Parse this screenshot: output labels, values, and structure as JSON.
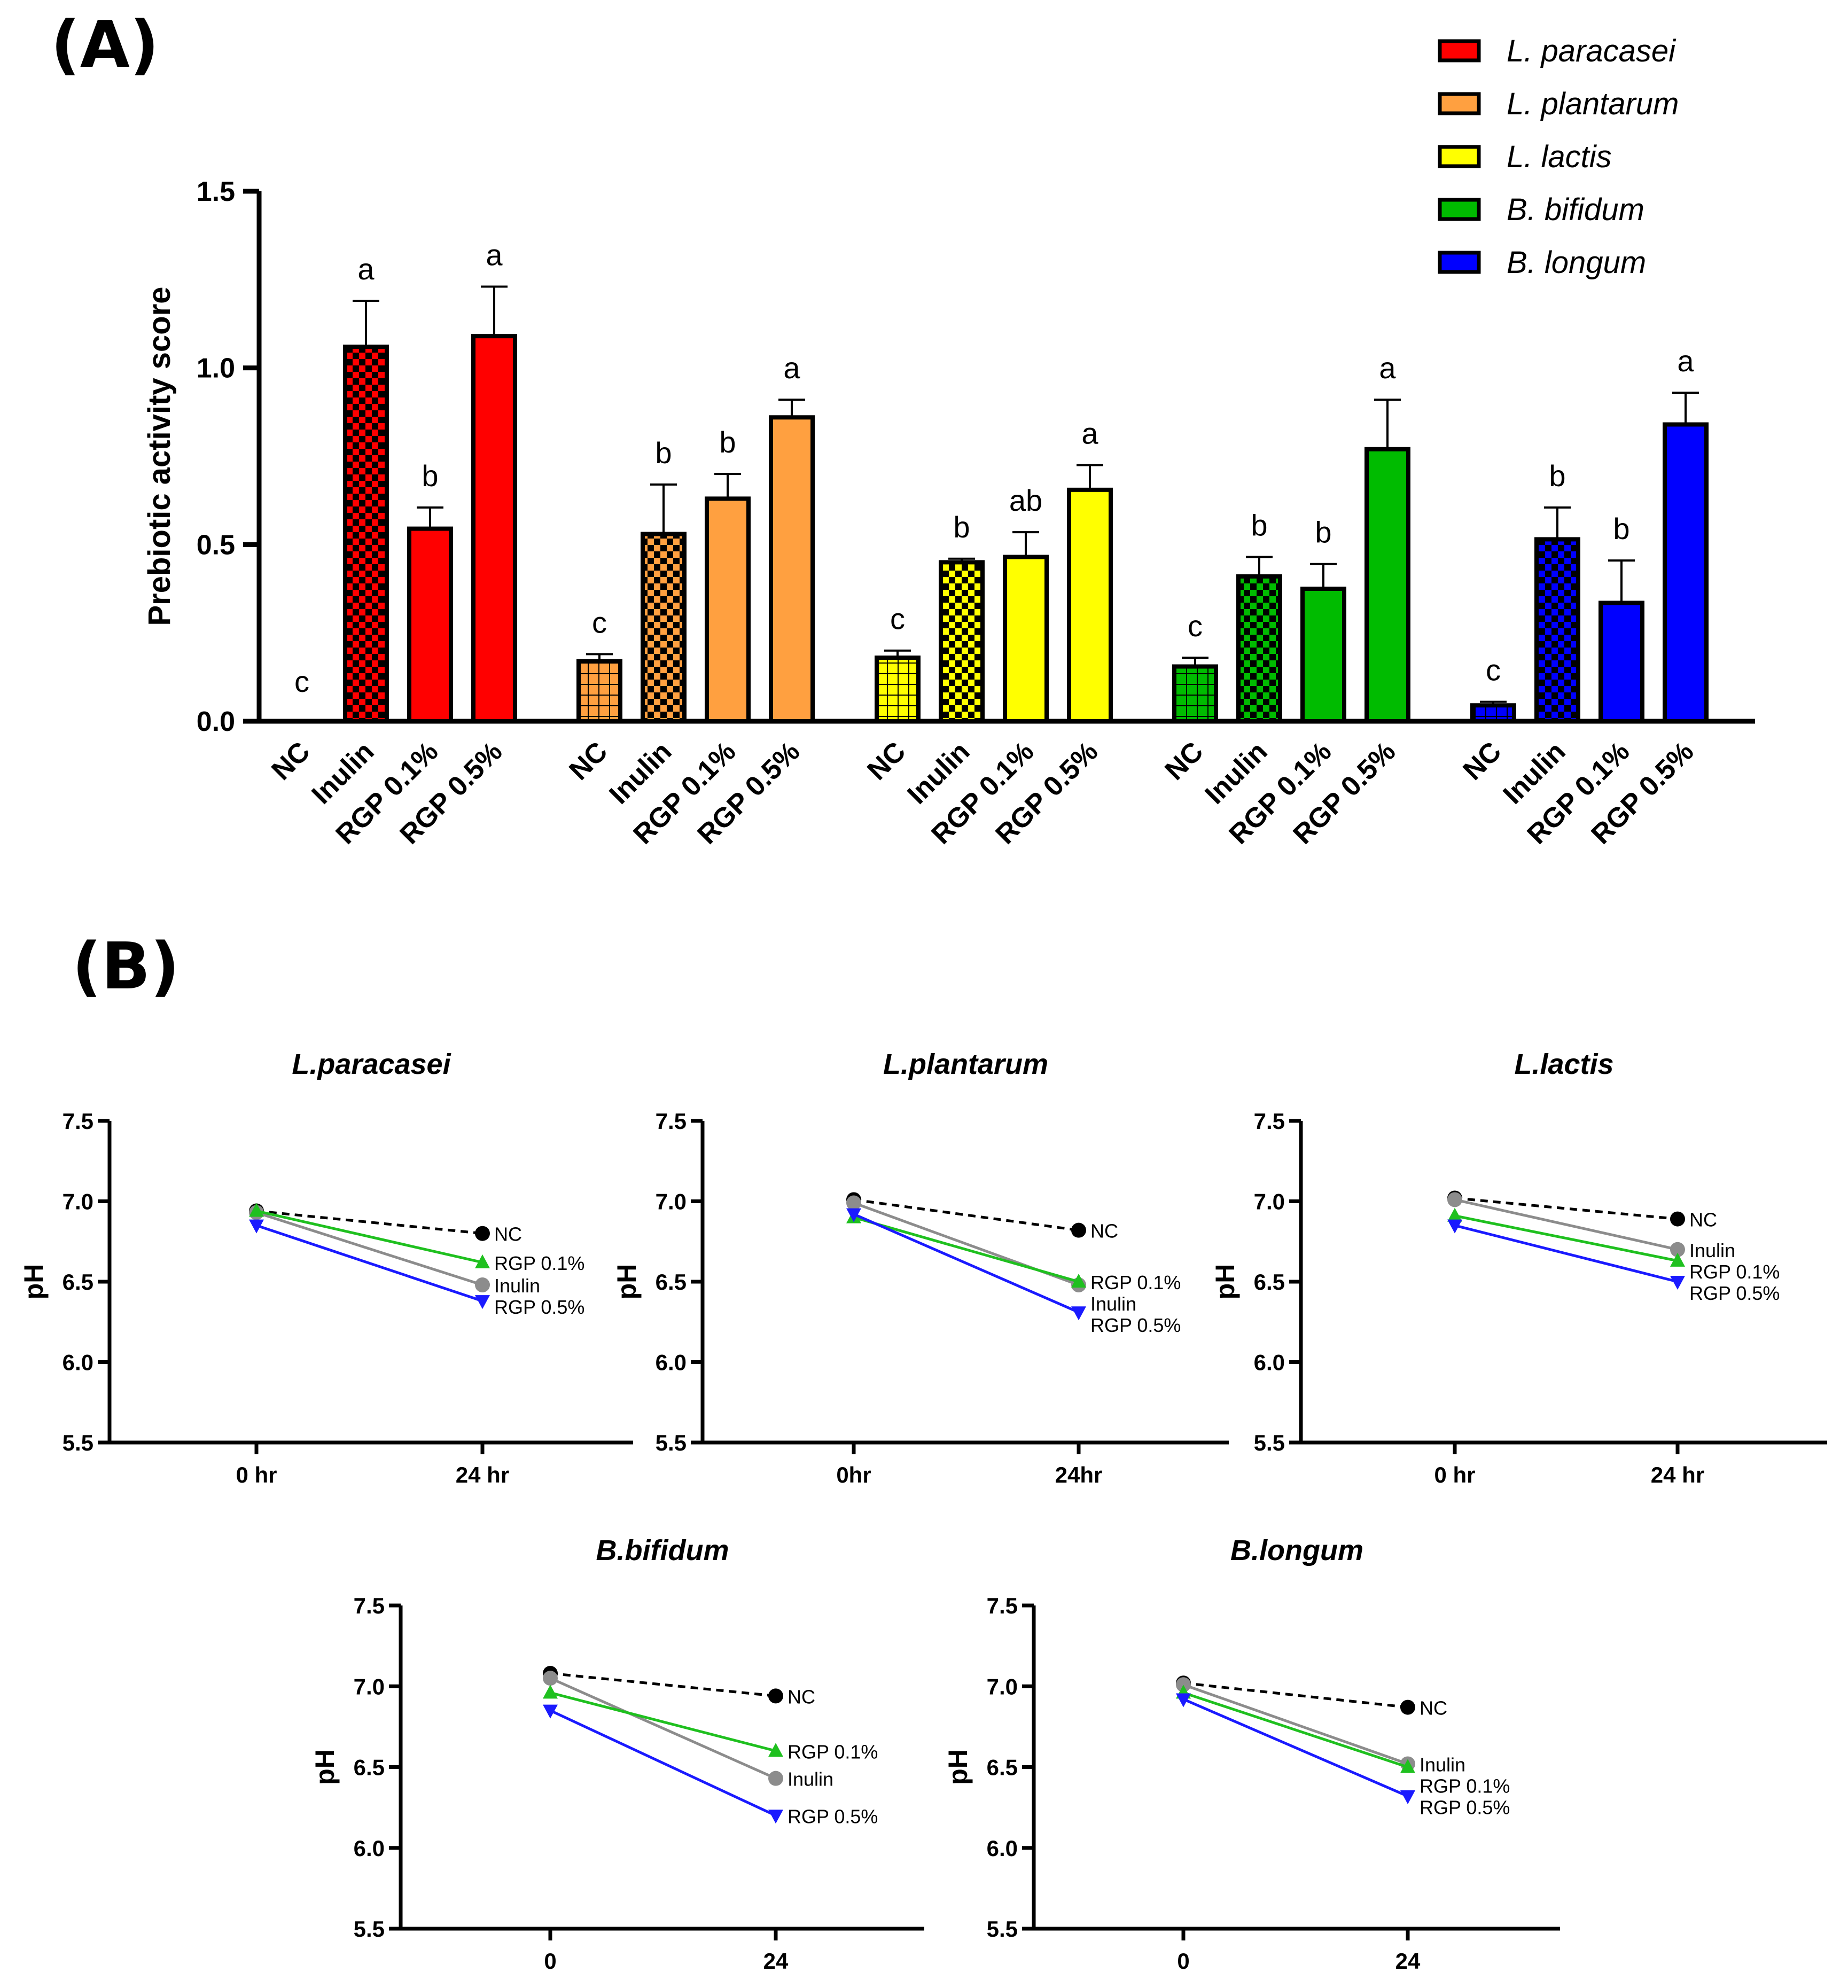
{
  "panel_labels": {
    "a": "(A)",
    "b": "(B)"
  },
  "colors": {
    "L. paracasei": "#ff0000",
    "L. plantarum": "#ffa040",
    "L. lactis": "#ffff00",
    "B. bifidum": "#00bb00",
    "B. longum": "#0000ff",
    "NC": "#000000",
    "Inulin": "#8c8c8c",
    "RGP 0.1%": "#1fc01f",
    "RGP 0.5%": "#1a1aff"
  },
  "chart_data": [
    {
      "type": "bar",
      "ylabel": "Prebiotic activity score",
      "ylim": [
        0,
        1.5
      ],
      "yticks": [
        "0.0",
        "0.5",
        "1.0",
        "1.5"
      ],
      "legend_position": "top-right",
      "legend": [
        "L. paracasei",
        "L. plantarum",
        "L. lactis",
        "B. bifidum",
        "B. longum"
      ],
      "categories": [
        "NC",
        "Inulin",
        "RGP 0.1%",
        "RGP 0.5%"
      ],
      "series": [
        {
          "name": "L. paracasei",
          "values": [
            0.0,
            1.06,
            0.545,
            1.09
          ],
          "errors": [
            0.0,
            0.13,
            0.06,
            0.14
          ],
          "letters": [
            "c",
            "a",
            "b",
            "a"
          ]
        },
        {
          "name": "L. plantarum",
          "values": [
            0.17,
            0.53,
            0.63,
            0.86
          ],
          "errors": [
            0.02,
            0.14,
            0.07,
            0.05
          ],
          "letters": [
            "c",
            "b",
            "b",
            "a"
          ]
        },
        {
          "name": "L. lactis",
          "values": [
            0.18,
            0.45,
            0.465,
            0.655
          ],
          "errors": [
            0.02,
            0.01,
            0.07,
            0.07
          ],
          "letters": [
            "c",
            "b",
            "ab",
            "a"
          ]
        },
        {
          "name": "B. bifidum",
          "values": [
            0.155,
            0.41,
            0.375,
            0.77
          ],
          "errors": [
            0.025,
            0.055,
            0.07,
            0.14
          ],
          "letters": [
            "c",
            "b",
            "b",
            "a"
          ]
        },
        {
          "name": "B. longum",
          "values": [
            0.045,
            0.515,
            0.335,
            0.84
          ],
          "errors": [
            0.01,
            0.09,
            0.12,
            0.09
          ],
          "letters": [
            "c",
            "b",
            "b",
            "a"
          ]
        }
      ]
    },
    {
      "type": "line",
      "title": "L.paracasei",
      "ylabel": "pH",
      "ylim": [
        5.5,
        7.5
      ],
      "yticks": [
        "5.5",
        "6.0",
        "6.5",
        "7.0",
        "7.5"
      ],
      "x": [
        "0 hr",
        "24 hr"
      ],
      "series": [
        {
          "name": "NC",
          "values": [
            6.94,
            6.8
          ],
          "label_offset": 0
        },
        {
          "name": "RGP 0.1%",
          "values": [
            6.94,
            6.62
          ],
          "label_offset": 0
        },
        {
          "name": "Inulin",
          "values": [
            6.93,
            6.48
          ],
          "label_offset": 0
        },
        {
          "name": "RGP 0.5%",
          "values": [
            6.85,
            6.38
          ],
          "label_offset": 0
        }
      ]
    },
    {
      "type": "line",
      "title": "L.plantarum",
      "ylabel": "pH",
      "ylim": [
        5.5,
        7.5
      ],
      "yticks": [
        "5.5",
        "6.0",
        "6.5",
        "7.0",
        "7.5"
      ],
      "x": [
        "0hr",
        "24hr"
      ],
      "series": [
        {
          "name": "NC",
          "values": [
            7.01,
            6.82
          ],
          "label_offset": 0
        },
        {
          "name": "RGP 0.1%",
          "values": [
            6.9,
            6.5
          ],
          "label_offset": 0
        },
        {
          "name": "Inulin",
          "values": [
            6.99,
            6.48
          ],
          "label_offset": 0
        },
        {
          "name": "RGP 0.5%",
          "values": [
            6.92,
            6.31
          ],
          "label_offset": 0
        }
      ]
    },
    {
      "type": "line",
      "title": "L.lactis",
      "ylabel": "pH",
      "ylim": [
        5.5,
        7.5
      ],
      "yticks": [
        "5.5",
        "6.0",
        "6.5",
        "7.0",
        "7.5"
      ],
      "x": [
        "0 hr",
        "24 hr"
      ],
      "series": [
        {
          "name": "NC",
          "values": [
            7.02,
            6.89
          ],
          "label_offset": 0
        },
        {
          "name": "Inulin",
          "values": [
            7.01,
            6.7
          ],
          "label_offset": 0
        },
        {
          "name": "RGP 0.1%",
          "values": [
            6.91,
            6.63
          ],
          "label_offset": 0
        },
        {
          "name": "RGP 0.5%",
          "values": [
            6.85,
            6.5
          ],
          "label_offset": 0
        }
      ]
    },
    {
      "type": "line",
      "title": "B.bifidum",
      "ylabel": "pH",
      "ylim": [
        5.5,
        7.5
      ],
      "yticks": [
        "5.5",
        "6.0",
        "6.5",
        "7.0",
        "7.5"
      ],
      "x": [
        "0",
        "24"
      ],
      "series": [
        {
          "name": "NC",
          "values": [
            7.08,
            6.94
          ],
          "label_offset": 0
        },
        {
          "name": "RGP 0.1%",
          "values": [
            6.96,
            6.6
          ],
          "label_offset": 0
        },
        {
          "name": "Inulin",
          "values": [
            7.05,
            6.43
          ],
          "label_offset": 0
        },
        {
          "name": "RGP 0.5%",
          "values": [
            6.85,
            6.2
          ],
          "label_offset": 0
        }
      ]
    },
    {
      "type": "line",
      "title": "B.longum",
      "ylabel": "pH",
      "ylim": [
        5.5,
        7.5
      ],
      "yticks": [
        "5.5",
        "6.0",
        "6.5",
        "7.0",
        "7.5"
      ],
      "x": [
        "0",
        "24"
      ],
      "series": [
        {
          "name": "NC",
          "values": [
            7.02,
            6.87
          ],
          "label_offset": 0
        },
        {
          "name": "Inulin",
          "values": [
            7.01,
            6.52
          ],
          "label_offset": -30
        },
        {
          "name": "RGP 0.1%",
          "values": [
            6.96,
            6.5
          ],
          "label_offset": 10
        },
        {
          "name": "RGP 0.5%",
          "values": [
            6.92,
            6.32
          ],
          "label_offset": 0
        }
      ]
    }
  ]
}
